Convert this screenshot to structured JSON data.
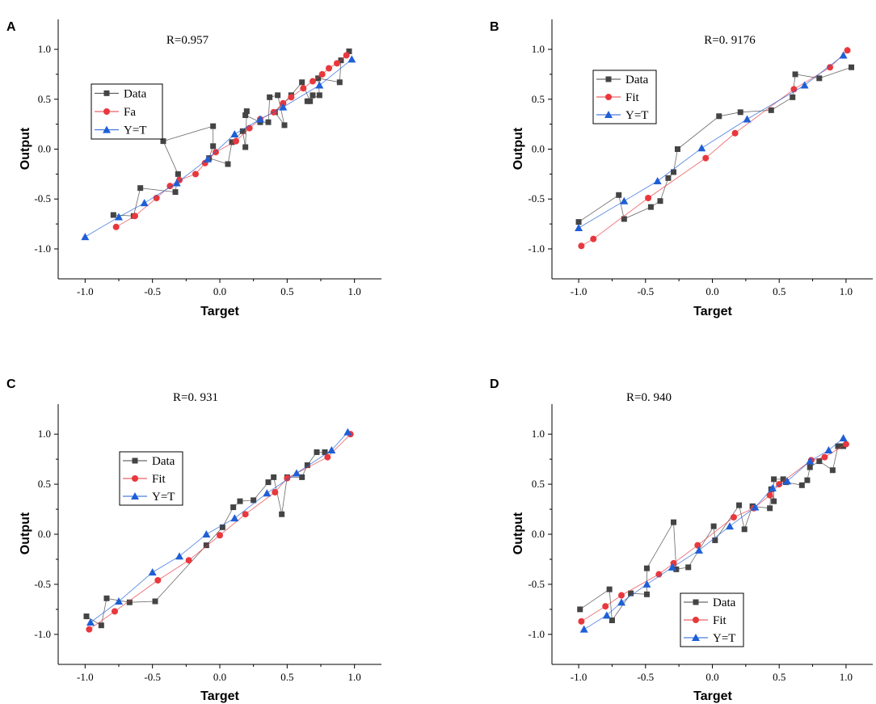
{
  "chart_data": [
    {
      "type": "line",
      "panel": "A",
      "title": "R=0.957",
      "xlabel": "Target",
      "ylabel": "Output",
      "xlim": [
        -1.2,
        1.2
      ],
      "ylim": [
        -1.3,
        1.3
      ],
      "xticks": [
        -1.0,
        -0.5,
        0.0,
        0.5,
        1.0
      ],
      "yticks": [
        -1.0,
        -0.5,
        0.0,
        0.5,
        1.0
      ],
      "xtick_labels": [
        "-1.0",
        "-0.5",
        "0.0",
        "0.5",
        "1.0"
      ],
      "ytick_labels": [
        "-1.0",
        "-0.5",
        "0.0",
        "0.5",
        "1.0"
      ],
      "legend_position": "upper-left",
      "series": [
        {
          "name": "Data",
          "marker": "square",
          "color": "#444444",
          "x": [
            -0.79,
            -0.64,
            -0.59,
            -0.33,
            -0.31,
            -0.42,
            -0.05,
            -0.05,
            -0.08,
            0.06,
            0.09,
            0.17,
            0.19,
            0.2,
            0.19,
            0.3,
            0.36,
            0.37,
            0.43,
            0.48,
            0.41,
            0.53,
            0.61,
            0.67,
            0.69,
            0.65,
            0.74,
            0.73,
            0.89,
            0.9,
            0.96
          ],
          "y": [
            -0.66,
            -0.67,
            -0.39,
            -0.43,
            -0.25,
            0.08,
            0.23,
            0.03,
            -0.09,
            -0.15,
            0.07,
            0.18,
            0.02,
            0.38,
            0.34,
            0.27,
            0.27,
            0.52,
            0.54,
            0.24,
            0.37,
            0.54,
            0.67,
            0.48,
            0.54,
            0.48,
            0.54,
            0.71,
            0.67,
            0.89,
            0.98
          ]
        },
        {
          "name": "Fa",
          "marker": "circle",
          "color": "#e8383d",
          "x": [
            -0.77,
            -0.63,
            -0.47,
            -0.37,
            -0.3,
            -0.18,
            -0.11,
            -0.03,
            0.12,
            0.22,
            0.3,
            0.4,
            0.47,
            0.53,
            0.62,
            0.69,
            0.76,
            0.81,
            0.87,
            0.94
          ],
          "y": [
            -0.78,
            -0.67,
            -0.49,
            -0.37,
            -0.31,
            -0.25,
            -0.14,
            -0.03,
            0.08,
            0.21,
            0.3,
            0.37,
            0.46,
            0.52,
            0.61,
            0.68,
            0.75,
            0.81,
            0.86,
            0.94
          ]
        },
        {
          "name": "Y=T",
          "marker": "triangle",
          "color": "#1f5fd6",
          "x": [
            -1.0,
            -0.75,
            -0.56,
            -0.32,
            -0.09,
            0.11,
            0.3,
            0.47,
            0.74,
            0.98
          ],
          "y": [
            -0.88,
            -0.68,
            -0.54,
            -0.34,
            -0.1,
            0.15,
            0.3,
            0.42,
            0.64,
            0.9
          ]
        }
      ]
    },
    {
      "type": "line",
      "panel": "B",
      "title": "R=0. 9176",
      "xlabel": "Target",
      "ylabel": "Output",
      "xlim": [
        -1.2,
        1.2
      ],
      "ylim": [
        -1.3,
        1.3
      ],
      "xticks": [
        -1.0,
        -0.5,
        0.0,
        0.5,
        1.0
      ],
      "yticks": [
        -1.0,
        -0.5,
        0.0,
        0.5,
        1.0
      ],
      "xtick_labels": [
        "-1.0",
        "-0.5",
        "0.0",
        "0.5",
        "1.0"
      ],
      "ytick_labels": [
        "-1.0",
        "-0.5",
        "0.0",
        "0.5",
        "1.0"
      ],
      "legend_position": "upper-left",
      "series": [
        {
          "name": "Data",
          "marker": "square",
          "color": "#444444",
          "x": [
            -1.0,
            -0.7,
            -0.66,
            -0.46,
            -0.39,
            -0.33,
            -0.29,
            -0.26,
            0.05,
            0.21,
            0.44,
            0.6,
            0.62,
            0.8,
            1.04
          ],
          "y": [
            -0.73,
            -0.46,
            -0.7,
            -0.58,
            -0.52,
            -0.29,
            -0.23,
            0.0,
            0.33,
            0.37,
            0.39,
            0.52,
            0.75,
            0.71,
            0.82
          ]
        },
        {
          "name": "Fit",
          "marker": "circle",
          "color": "#e8383d",
          "x": [
            -0.98,
            -0.89,
            -0.48,
            -0.05,
            0.17,
            0.61,
            0.88,
            1.01
          ],
          "y": [
            -0.97,
            -0.9,
            -0.49,
            -0.09,
            0.16,
            0.6,
            0.82,
            0.99
          ]
        },
        {
          "name": "Y=T",
          "marker": "triangle",
          "color": "#1f5fd6",
          "x": [
            -1.0,
            -0.66,
            -0.41,
            -0.08,
            0.26,
            0.69,
            0.98
          ],
          "y": [
            -0.79,
            -0.52,
            -0.32,
            0.01,
            0.3,
            0.64,
            0.94
          ]
        }
      ]
    },
    {
      "type": "line",
      "panel": "C",
      "title": "R=0. 931",
      "xlabel": "Target",
      "ylabel": "Output",
      "xlim": [
        -1.2,
        1.2
      ],
      "ylim": [
        -1.3,
        1.3
      ],
      "xticks": [
        -1.0,
        -0.5,
        0.0,
        0.5,
        1.0
      ],
      "yticks": [
        -1.0,
        -0.5,
        0.0,
        0.5,
        1.0
      ],
      "xtick_labels": [
        "-1.0",
        "-0.5",
        "0.0",
        "0.5",
        "1.0"
      ],
      "ytick_labels": [
        "-1.0",
        "-0.5",
        "0.0",
        "0.5",
        "1.0"
      ],
      "legend_position": "upper-left",
      "series": [
        {
          "name": "Data",
          "marker": "square",
          "color": "#444444",
          "x": [
            -0.99,
            -0.88,
            -0.84,
            -0.67,
            -0.48,
            -0.1,
            0.02,
            0.1,
            0.15,
            0.25,
            0.36,
            0.4,
            0.46,
            0.5,
            0.61,
            0.65,
            0.72,
            0.78
          ],
          "y": [
            -0.82,
            -0.91,
            -0.64,
            -0.68,
            -0.67,
            -0.11,
            0.07,
            0.27,
            0.33,
            0.34,
            0.52,
            0.57,
            0.2,
            0.57,
            0.57,
            0.69,
            0.82,
            0.82
          ]
        },
        {
          "name": "Fit",
          "marker": "circle",
          "color": "#e8383d",
          "x": [
            -0.97,
            -0.78,
            -0.46,
            -0.23,
            0.0,
            0.19,
            0.41,
            0.5,
            0.8,
            0.97
          ],
          "y": [
            -0.95,
            -0.77,
            -0.46,
            -0.26,
            -0.01,
            0.2,
            0.42,
            0.56,
            0.77,
            1.0
          ]
        },
        {
          "name": "Y=T",
          "marker": "triangle",
          "color": "#1f5fd6",
          "x": [
            -0.96,
            -0.75,
            -0.5,
            -0.3,
            -0.1,
            0.11,
            0.35,
            0.57,
            0.83,
            0.95
          ],
          "y": [
            -0.88,
            -0.67,
            -0.38,
            -0.22,
            0.0,
            0.16,
            0.41,
            0.61,
            0.84,
            1.02
          ]
        }
      ]
    },
    {
      "type": "line",
      "panel": "D",
      "title": "R=0. 940",
      "xlabel": "Target",
      "ylabel": "Output",
      "xlim": [
        -1.2,
        1.2
      ],
      "ylim": [
        -1.3,
        1.3
      ],
      "xticks": [
        -1.0,
        -0.5,
        0.0,
        0.5,
        1.0
      ],
      "yticks": [
        -1.0,
        -0.5,
        0.0,
        0.5,
        1.0
      ],
      "xtick_labels": [
        "-1.0",
        "-0.5",
        "0.0",
        "0.5",
        "1.0"
      ],
      "ytick_labels": [
        "-1.0",
        "-0.5",
        "0.0",
        "0.5",
        "1.0"
      ],
      "legend_position": "lower-center",
      "series": [
        {
          "name": "Data",
          "marker": "square",
          "color": "#444444",
          "x": [
            -0.99,
            -0.77,
            -0.75,
            -0.61,
            -0.49,
            -0.49,
            -0.29,
            -0.27,
            -0.18,
            0.01,
            0.02,
            0.2,
            0.24,
            0.3,
            0.43,
            0.44,
            0.46,
            0.46,
            0.53,
            0.55,
            0.67,
            0.71,
            0.73,
            0.8,
            0.9,
            0.94,
            0.98
          ],
          "y": [
            -0.75,
            -0.55,
            -0.86,
            -0.59,
            -0.6,
            -0.34,
            0.12,
            -0.35,
            -0.33,
            0.08,
            -0.06,
            0.29,
            0.05,
            0.28,
            0.26,
            0.45,
            0.33,
            0.55,
            0.55,
            0.52,
            0.49,
            0.54,
            0.67,
            0.73,
            0.64,
            0.88,
            0.88
          ]
        },
        {
          "name": "Fit",
          "marker": "circle",
          "color": "#e8383d",
          "x": [
            -0.98,
            -0.8,
            -0.68,
            -0.4,
            -0.29,
            -0.11,
            0.16,
            0.31,
            0.43,
            0.5,
            0.74,
            0.84,
            1.0
          ],
          "y": [
            -0.87,
            -0.72,
            -0.61,
            -0.4,
            -0.29,
            -0.11,
            0.17,
            0.26,
            0.39,
            0.5,
            0.74,
            0.77,
            0.9
          ]
        },
        {
          "name": "Y=T",
          "marker": "triangle",
          "color": "#1f5fd6",
          "x": [
            -0.96,
            -0.79,
            -0.68,
            -0.49,
            -0.3,
            -0.1,
            0.13,
            0.32,
            0.45,
            0.56,
            0.73,
            0.87,
            0.98
          ],
          "y": [
            -0.95,
            -0.81,
            -0.68,
            -0.5,
            -0.33,
            -0.16,
            0.08,
            0.27,
            0.46,
            0.53,
            0.73,
            0.84,
            0.96
          ]
        }
      ]
    }
  ]
}
